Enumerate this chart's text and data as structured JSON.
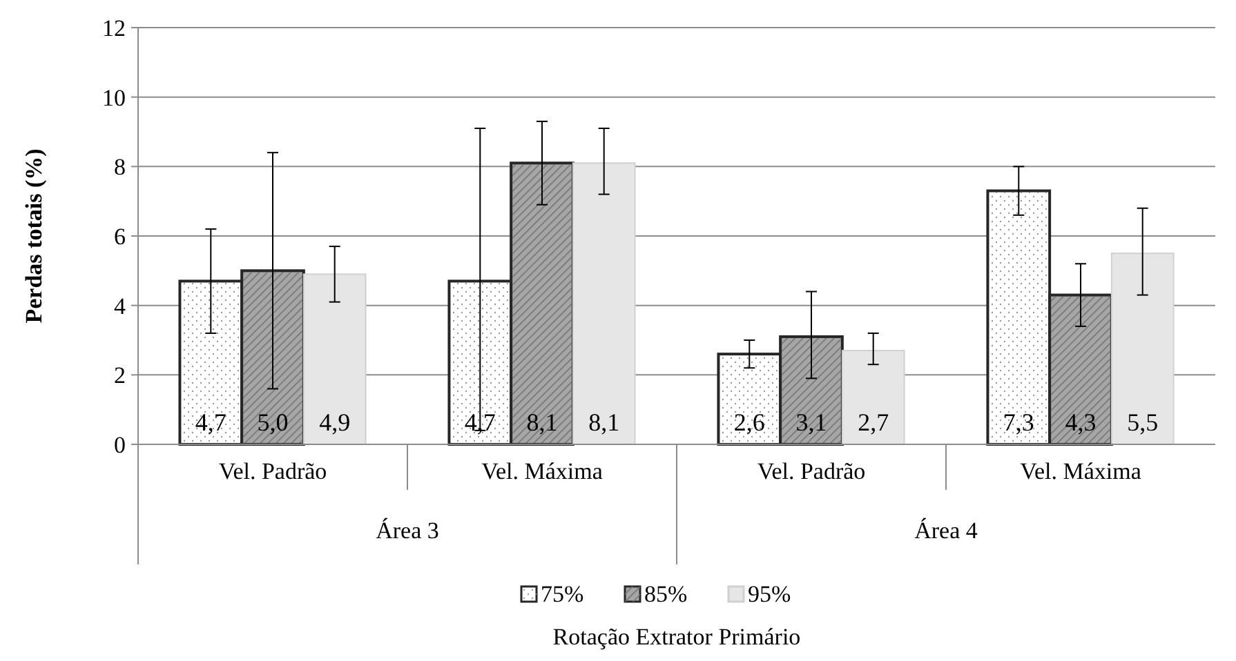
{
  "chart_data": {
    "type": "bar",
    "legend_title": "Rotação Extrator Primário",
    "ylabel": "Perdas totais (%)",
    "categories": [
      "Vel. Padrão",
      "Vel. Máxima",
      "Vel. Padrão",
      "Vel. Máxima"
    ],
    "annotations": [
      "Área 3",
      "Área 4"
    ],
    "series": [
      {
        "name": "75%",
        "color": "#ffffff",
        "values": [
          4.7,
          4.7,
          2.6,
          7.3
        ],
        "value_labels": [
          "4,7",
          "4,7",
          "2,6",
          "7,3"
        ],
        "errors": [
          [
            3.2,
            6.2
          ],
          [
            0.4,
            9.1
          ],
          [
            2.2,
            3.0
          ],
          [
            6.6,
            8.0
          ]
        ]
      },
      {
        "name": "85%",
        "color": "#a6a6a6",
        "values": [
          5.0,
          8.1,
          3.1,
          4.3
        ],
        "value_labels": [
          "5,0",
          "8,1",
          "3,1",
          "4,3"
        ],
        "errors": [
          [
            1.6,
            8.4
          ],
          [
            6.9,
            9.3
          ],
          [
            1.9,
            4.4
          ],
          [
            3.4,
            5.2
          ]
        ]
      },
      {
        "name": "95%",
        "color": "#e6e6e6",
        "values": [
          4.9,
          8.1,
          2.7,
          5.5
        ],
        "value_labels": [
          "4,9",
          "8,1",
          "2,7",
          "5,5"
        ],
        "errors": [
          [
            4.1,
            5.7
          ],
          [
            7.2,
            9.1
          ],
          [
            2.3,
            3.2
          ],
          [
            4.3,
            6.8
          ]
        ]
      }
    ],
    "ylim": [
      0,
      12
    ],
    "yticks": [
      0,
      2,
      4,
      6,
      8,
      10,
      12
    ],
    "grid": "y",
    "legend": "bottom"
  }
}
